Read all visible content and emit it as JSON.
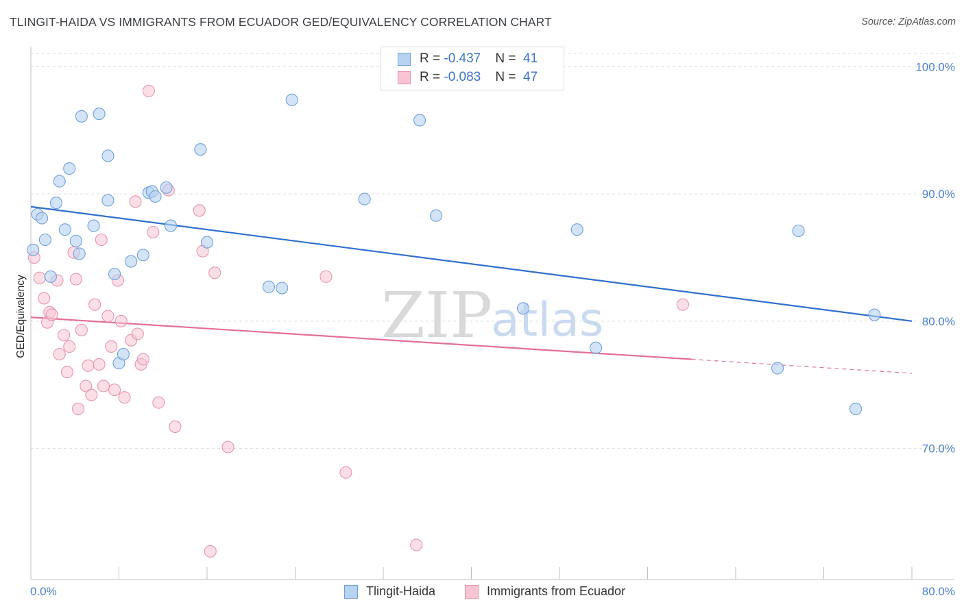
{
  "header": {
    "title": "TLINGIT-HAIDA VS IMMIGRANTS FROM ECUADOR GED/EQUIVALENCY CORRELATION CHART",
    "source": "Source: ZipAtlas.com"
  },
  "watermark": {
    "zip": "ZIP",
    "atlas": "atlas"
  },
  "legend_top": {
    "rows": [
      {
        "r_label": "R = ",
        "r_value": "-0.437",
        "n_label": "N = ",
        "n_value": "41"
      },
      {
        "r_label": "R = ",
        "r_value": "-0.083",
        "n_label": "N = ",
        "n_value": "47"
      }
    ]
  },
  "legend_bottom": {
    "items": [
      "Tlingit-Haida",
      "Immigrants from Ecuador"
    ]
  },
  "colors": {
    "blue_fill": "#b8d2f2",
    "blue_stroke": "#6d9fdc",
    "blue_line": "#2f6fd0",
    "pink_fill": "#f7c4d3",
    "pink_stroke": "#e794ad",
    "pink_line": "#e46f96",
    "grid": "#dcdcdc",
    "tick_text": "#4a7fcf"
  },
  "chart_data": {
    "type": "scatter",
    "title": "TLINGIT-HAIDA VS IMMIGRANTS FROM ECUADOR GED/EQUIVALENCY CORRELATION CHART",
    "xlabel": "",
    "ylabel": "GED/Equivalency",
    "xlim": [
      0,
      80
    ],
    "ylim": [
      60.5,
      101
    ],
    "x_tick_labels": [
      "0.0%",
      "80.0%"
    ],
    "y_ticks": [
      70,
      80,
      90,
      100
    ],
    "y_tick_labels": [
      "70.0%",
      "80.0%",
      "90.0%",
      "100.0%"
    ],
    "grid": true,
    "legend_placement": "top-center",
    "series": [
      {
        "name": "Tlingit-Haida",
        "r": -0.437,
        "n": 41,
        "trend": {
          "x": [
            0,
            80
          ],
          "y": [
            89.0,
            80.0
          ]
        },
        "points": [
          [
            0.2,
            85.6
          ],
          [
            0.6,
            88.4
          ],
          [
            1.0,
            88.1
          ],
          [
            1.3,
            86.4
          ],
          [
            1.8,
            83.5
          ],
          [
            2.3,
            89.3
          ],
          [
            2.6,
            91.0
          ],
          [
            3.1,
            87.2
          ],
          [
            3.5,
            92.0
          ],
          [
            4.1,
            86.3
          ],
          [
            4.4,
            85.3
          ],
          [
            4.6,
            96.1
          ],
          [
            5.7,
            87.5
          ],
          [
            6.2,
            96.3
          ],
          [
            7.0,
            93.0
          ],
          [
            7.0,
            89.5
          ],
          [
            7.6,
            83.7
          ],
          [
            8.0,
            76.7
          ],
          [
            8.4,
            77.4
          ],
          [
            9.1,
            84.7
          ],
          [
            10.2,
            85.2
          ],
          [
            10.7,
            90.1
          ],
          [
            11.0,
            90.2
          ],
          [
            11.3,
            89.8
          ],
          [
            12.3,
            90.5
          ],
          [
            12.7,
            87.5
          ],
          [
            15.4,
            93.5
          ],
          [
            16.0,
            86.2
          ],
          [
            21.6,
            82.7
          ],
          [
            22.8,
            82.6
          ],
          [
            23.7,
            97.4
          ],
          [
            30.3,
            89.6
          ],
          [
            35.3,
            95.8
          ],
          [
            36.8,
            88.3
          ],
          [
            44.7,
            81.0
          ],
          [
            49.6,
            87.2
          ],
          [
            51.3,
            77.9
          ],
          [
            69.7,
            87.1
          ],
          [
            67.8,
            76.3
          ],
          [
            74.9,
            73.1
          ],
          [
            76.6,
            80.5
          ]
        ]
      },
      {
        "name": "Immigrants from Ecuador",
        "r": -0.083,
        "n": 47,
        "trend": {
          "x": [
            0,
            60
          ],
          "y": [
            80.3,
            77.0
          ]
        },
        "trend_extension": {
          "x": [
            60,
            80
          ],
          "y": [
            77.0,
            75.9
          ]
        },
        "points": [
          [
            0.3,
            85.0
          ],
          [
            0.8,
            83.4
          ],
          [
            1.2,
            81.8
          ],
          [
            1.5,
            79.9
          ],
          [
            1.7,
            80.7
          ],
          [
            1.9,
            80.5
          ],
          [
            2.4,
            83.2
          ],
          [
            2.6,
            77.4
          ],
          [
            3.0,
            78.9
          ],
          [
            3.3,
            76.0
          ],
          [
            3.5,
            78.0
          ],
          [
            3.9,
            85.4
          ],
          [
            4.1,
            83.3
          ],
          [
            4.3,
            73.1
          ],
          [
            4.6,
            79.3
          ],
          [
            5.0,
            74.9
          ],
          [
            5.2,
            76.5
          ],
          [
            5.5,
            74.2
          ],
          [
            5.8,
            81.3
          ],
          [
            6.2,
            76.6
          ],
          [
            6.4,
            86.4
          ],
          [
            6.6,
            74.9
          ],
          [
            7.0,
            80.4
          ],
          [
            7.3,
            78.0
          ],
          [
            7.6,
            74.6
          ],
          [
            7.9,
            83.2
          ],
          [
            8.2,
            80.0
          ],
          [
            8.5,
            74.0
          ],
          [
            9.1,
            78.5
          ],
          [
            9.5,
            89.4
          ],
          [
            9.7,
            79.0
          ],
          [
            10.0,
            76.6
          ],
          [
            10.2,
            77.0
          ],
          [
            10.7,
            98.1
          ],
          [
            11.1,
            87.0
          ],
          [
            11.6,
            73.6
          ],
          [
            12.5,
            90.3
          ],
          [
            13.1,
            71.7
          ],
          [
            15.3,
            88.7
          ],
          [
            15.6,
            85.5
          ],
          [
            16.3,
            61.9
          ],
          [
            16.7,
            83.8
          ],
          [
            17.9,
            70.1
          ],
          [
            26.8,
            83.5
          ],
          [
            28.6,
            68.1
          ],
          [
            59.2,
            81.3
          ],
          [
            35.0,
            62.4
          ]
        ]
      }
    ]
  }
}
